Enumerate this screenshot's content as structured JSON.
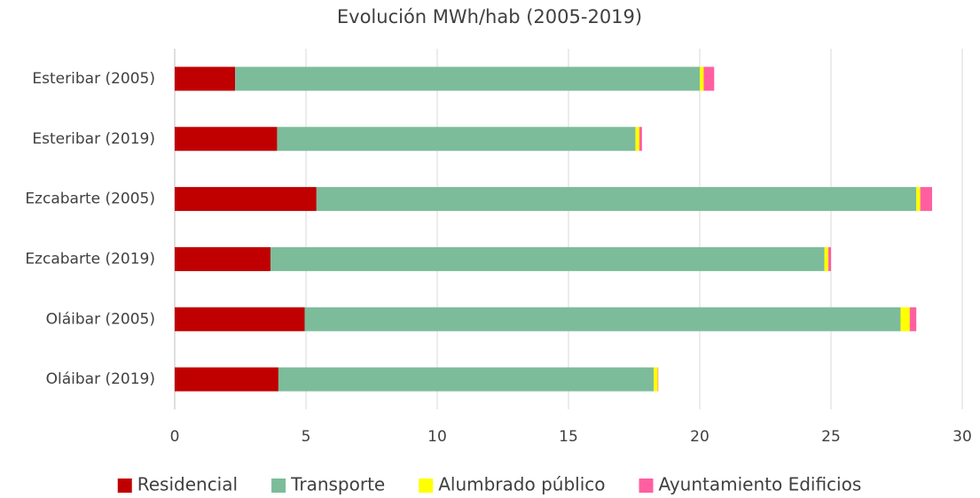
{
  "chart_data": {
    "type": "bar",
    "orientation": "horizontal",
    "stacked": true,
    "title": "Evolución MWh/hab (2005-2019)",
    "categories": [
      "Esteribar (2005)",
      "Esteribar (2019)",
      "Ezcabarte (2005)",
      "Ezcabarte (2019)",
      "Oláibar (2005)",
      "Oláibar (2019)"
    ],
    "series": [
      {
        "name": "Residencial",
        "color": "#c00000",
        "values": [
          2.3,
          3.9,
          5.4,
          3.65,
          4.95,
          3.95
        ]
      },
      {
        "name": "Transporte",
        "color": "#7cbc9a",
        "values": [
          17.7,
          13.65,
          22.85,
          21.1,
          22.7,
          14.3
        ]
      },
      {
        "name": "Alumbrado público",
        "color": "#ffff00",
        "values": [
          0.15,
          0.15,
          0.15,
          0.15,
          0.35,
          0.15
        ]
      },
      {
        "name": "Ayuntamiento Edificios",
        "color": "#ff5fa0",
        "values": [
          0.4,
          0.1,
          0.45,
          0.1,
          0.25,
          0.02
        ]
      }
    ],
    "xlim": [
      0,
      30
    ],
    "xticks": [
      0,
      5,
      10,
      15,
      20,
      25,
      30
    ],
    "grid": true,
    "legend": "bottom"
  }
}
